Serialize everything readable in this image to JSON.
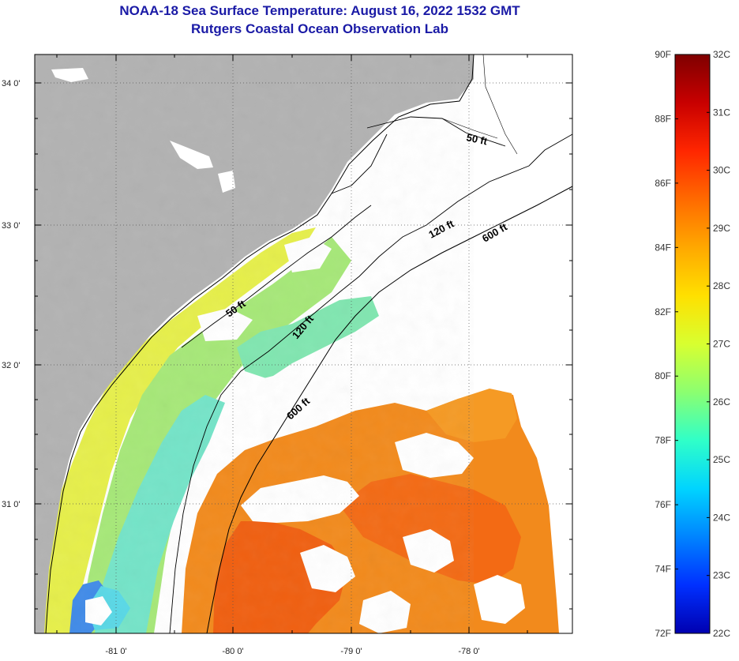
{
  "title_line1": "NOAA-18 Sea Surface Temperature:  August 16, 2022 1532 GMT",
  "title_line2": "Rutgers Coastal Ocean Observation Lab",
  "colors": {
    "land": "#b2b2b2",
    "water_nodata": "#ffffff",
    "title": "#1a1aa6",
    "warm_orange": "#f07a18",
    "hot_orange": "#f25a0c",
    "yellow": "#e8ec3a",
    "green": "#9fe07a",
    "cyan": "#54dcd0",
    "blue": "#1a6ce0"
  },
  "axes": {
    "lat_labels": [
      "34 0'",
      "33 0'",
      "32 0'",
      "31 0'"
    ],
    "lon_labels": [
      "-81 0'",
      "-80 0'",
      "-79 0'",
      "-78 0'"
    ]
  },
  "contours": {
    "labels": [
      "50 ft",
      "120 ft",
      "600 ft",
      "50 ft",
      "120 ft",
      "600 ft"
    ]
  },
  "colorbar": {
    "fahrenheit_labels": [
      "90F",
      "88F",
      "86F",
      "84F",
      "82F",
      "80F",
      "78F",
      "76F",
      "74F",
      "72F"
    ],
    "celsius_labels": [
      "32C",
      "31C",
      "30C",
      "29C",
      "28C",
      "27C",
      "26C",
      "25C",
      "24C",
      "23C",
      "22C"
    ],
    "gradient_stops": [
      "#7f0000",
      "#c80000",
      "#ff2600",
      "#ff6a00",
      "#ffa800",
      "#ffe000",
      "#d8ff30",
      "#8cff70",
      "#30ffc8",
      "#00d4ff",
      "#0084ff",
      "#0030ff",
      "#0000b0"
    ]
  }
}
